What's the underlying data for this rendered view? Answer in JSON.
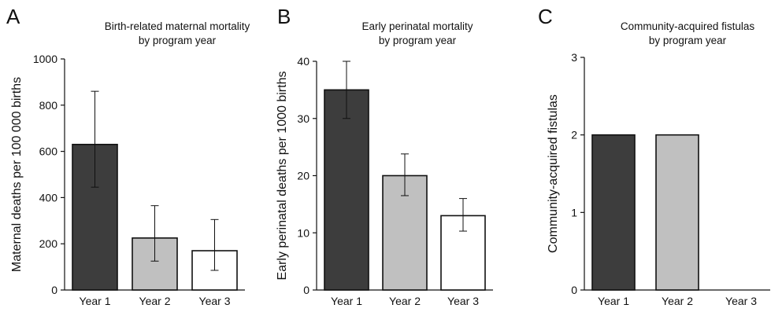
{
  "chart_data": [
    {
      "type": "bar",
      "panel": "A",
      "title": [
        "Birth-related maternal mortality",
        "by program year"
      ],
      "ylabel": "Maternal deaths per 100 000 births",
      "xlabel": "",
      "categories": [
        "Year 1",
        "Year 2",
        "Year 3"
      ],
      "values": [
        630,
        225,
        170
      ],
      "error_low": [
        445,
        125,
        85
      ],
      "error_high": [
        860,
        365,
        305
      ],
      "ylim": [
        0,
        1000
      ],
      "yticks": [
        0,
        200,
        400,
        600,
        800,
        1000
      ],
      "colors": [
        "#3d3d3d",
        "#c0c0c0",
        "#ffffff"
      ],
      "grid": false
    },
    {
      "type": "bar",
      "panel": "B",
      "title": [
        "Early perinatal mortality",
        "by program year"
      ],
      "ylabel": "Early perinatal deaths per 1000 births",
      "xlabel": "",
      "categories": [
        "Year 1",
        "Year 2",
        "Year 3"
      ],
      "values": [
        35,
        20,
        13
      ],
      "error_low": [
        30,
        16.5,
        10.3
      ],
      "error_high": [
        40,
        23.8,
        16
      ],
      "ylim": [
        0,
        40
      ],
      "yticks": [
        0,
        10,
        20,
        30,
        40
      ],
      "colors": [
        "#3d3d3d",
        "#c0c0c0",
        "#ffffff"
      ],
      "grid": false
    },
    {
      "type": "bar",
      "panel": "C",
      "title": [
        "Community-acquired fistulas",
        "by program year"
      ],
      "ylabel": "Community-acquired fistulas",
      "xlabel": "",
      "categories": [
        "Year 1",
        "Year 2",
        "Year 3"
      ],
      "values": [
        2,
        2,
        0
      ],
      "error_low": null,
      "error_high": null,
      "ylim": [
        0,
        3
      ],
      "yticks": [
        0,
        1,
        2,
        3
      ],
      "colors": [
        "#3d3d3d",
        "#c0c0c0",
        "#ffffff"
      ],
      "grid": false
    }
  ]
}
